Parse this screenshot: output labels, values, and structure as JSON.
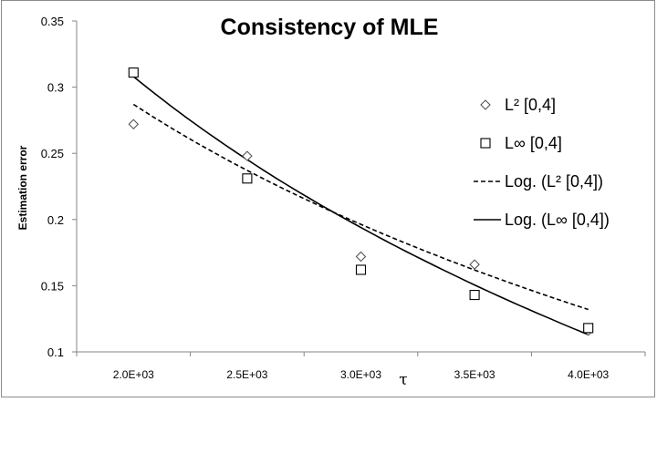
{
  "chart_data": {
    "type": "scatter",
    "title": "Consistency of MLE",
    "xlabel": "τ",
    "ylabel": "Estimation  error",
    "xlim": [
      1750,
      4250
    ],
    "ylim": [
      0.1,
      0.35
    ],
    "grid": false,
    "legend_position": "right",
    "y_ticks": [
      "0.1",
      "0.15",
      "0.2",
      "0.25",
      "0.3",
      "0.35"
    ],
    "x_ticks": [
      "2.0E+03",
      "2.5E+03",
      "3.0E+03",
      "3.5E+03",
      "4.0E+03"
    ],
    "x_tick_values": [
      2000,
      2500,
      3000,
      3500,
      4000
    ],
    "y_tick_values": [
      0.1,
      0.15,
      0.2,
      0.25,
      0.3,
      0.35
    ],
    "series": [
      {
        "name": "L² [0,4]",
        "marker": "diamond",
        "x": [
          2000,
          2500,
          3000,
          3500,
          4000
        ],
        "values": [
          0.272,
          0.248,
          0.172,
          0.166,
          0.116
        ]
      },
      {
        "name": "L∞  [0,4]",
        "marker": "square",
        "x": [
          2000,
          2500,
          3000,
          3500,
          4000
        ],
        "values": [
          0.311,
          0.231,
          0.162,
          0.143,
          0.118
        ]
      }
    ],
    "trendlines": [
      {
        "name": "Log. (L² [0,4])",
        "style": "dashed",
        "fit": "logarithmic",
        "x_range": [
          2000,
          4000
        ],
        "y_start": 0.287,
        "y_end": 0.132
      },
      {
        "name": "Log. (L∞  [0,4])",
        "style": "solid",
        "fit": "logarithmic",
        "x_range": [
          2000,
          4000
        ],
        "y_start": 0.308,
        "y_end": 0.113
      }
    ],
    "legend": [
      "L² [0,4]",
      "L∞  [0,4]",
      "Log. (L² [0,4])",
      "Log. (L∞  [0,4])"
    ]
  }
}
